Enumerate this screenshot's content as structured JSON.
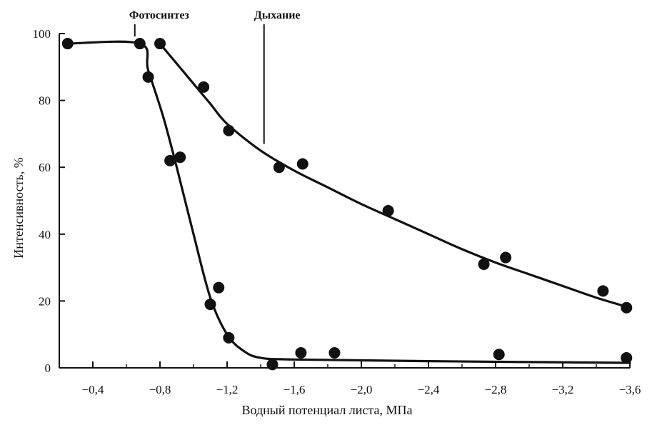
{
  "chart_data": {
    "type": "scatter",
    "xlabel": "Водный потенциал листа,   МПа",
    "ylabel": "Интенсивность, %",
    "xlim": [
      -0.2,
      -3.6
    ],
    "ylim": [
      0,
      100
    ],
    "x_ticks": [
      -0.4,
      -0.8,
      -1.2,
      -1.6,
      -2.0,
      -2.4,
      -2.8,
      -3.2,
      -3.6
    ],
    "x_tick_labels": [
      "−0,4",
      "−0,8",
      "−1,2",
      "−1,6",
      "−2,0",
      "−2,4",
      "−2,8",
      "−3,2",
      "−3,6"
    ],
    "y_ticks": [
      0,
      20,
      40,
      60,
      80,
      100
    ],
    "y_tick_labels": [
      "0",
      "20",
      "40",
      "60",
      "80",
      "100"
    ],
    "grid": false,
    "legend": "none",
    "annotations": [
      {
        "text": "Фотосинтез",
        "x": -0.65,
        "y": 100
      },
      {
        "text": "Дыхание",
        "x": -1.42,
        "y": 100
      }
    ],
    "series": [
      {
        "points": [
          {
            "x": -0.25,
            "y": 97
          },
          {
            "x": -0.68,
            "y": 97
          },
          {
            "x": -0.73,
            "y": 87
          },
          {
            "x": -0.86,
            "y": 62
          },
          {
            "x": -0.92,
            "y": 63
          },
          {
            "x": -1.1,
            "y": 19
          },
          {
            "x": -1.15,
            "y": 24
          },
          {
            "x": -1.21,
            "y": 9
          },
          {
            "x": -1.47,
            "y": 1
          },
          {
            "x": -1.64,
            "y": 4.5
          },
          {
            "x": -1.84,
            "y": 4.5
          },
          {
            "x": -2.82,
            "y": 4
          },
          {
            "x": -3.58,
            "y": 3
          }
        ],
        "curve": [
          {
            "x": -0.25,
            "y": 97
          },
          {
            "x": -0.68,
            "y": 97
          },
          {
            "x": -0.73,
            "y": 89
          },
          {
            "x": -0.82,
            "y": 75
          },
          {
            "x": -0.9,
            "y": 60
          },
          {
            "x": -1.0,
            "y": 40
          },
          {
            "x": -1.1,
            "y": 21
          },
          {
            "x": -1.2,
            "y": 10
          },
          {
            "x": -1.3,
            "y": 5
          },
          {
            "x": -1.4,
            "y": 3
          },
          {
            "x": -1.6,
            "y": 2.5
          },
          {
            "x": -2.4,
            "y": 2
          },
          {
            "x": -3.6,
            "y": 1.5
          }
        ]
      },
      {
        "points": [
          {
            "x": -0.8,
            "y": 97
          },
          {
            "x": -1.06,
            "y": 84
          },
          {
            "x": -1.21,
            "y": 71
          },
          {
            "x": -1.51,
            "y": 60
          },
          {
            "x": -1.65,
            "y": 61
          },
          {
            "x": -2.16,
            "y": 47
          },
          {
            "x": -2.73,
            "y": 31
          },
          {
            "x": -2.86,
            "y": 33
          },
          {
            "x": -3.44,
            "y": 23
          },
          {
            "x": -3.58,
            "y": 18
          }
        ],
        "curve": [
          {
            "x": -0.8,
            "y": 97
          },
          {
            "x": -0.9,
            "y": 91
          },
          {
            "x": -1.0,
            "y": 85
          },
          {
            "x": -1.1,
            "y": 79
          },
          {
            "x": -1.2,
            "y": 73
          },
          {
            "x": -1.4,
            "y": 65
          },
          {
            "x": -1.6,
            "y": 59
          },
          {
            "x": -1.8,
            "y": 54
          },
          {
            "x": -2.0,
            "y": 49
          },
          {
            "x": -2.2,
            "y": 44.5
          },
          {
            "x": -2.4,
            "y": 40
          },
          {
            "x": -2.6,
            "y": 35.5
          },
          {
            "x": -2.8,
            "y": 31.5
          },
          {
            "x": -3.0,
            "y": 28
          },
          {
            "x": -3.2,
            "y": 24.5
          },
          {
            "x": -3.4,
            "y": 21
          },
          {
            "x": -3.6,
            "y": 18
          }
        ]
      }
    ]
  }
}
